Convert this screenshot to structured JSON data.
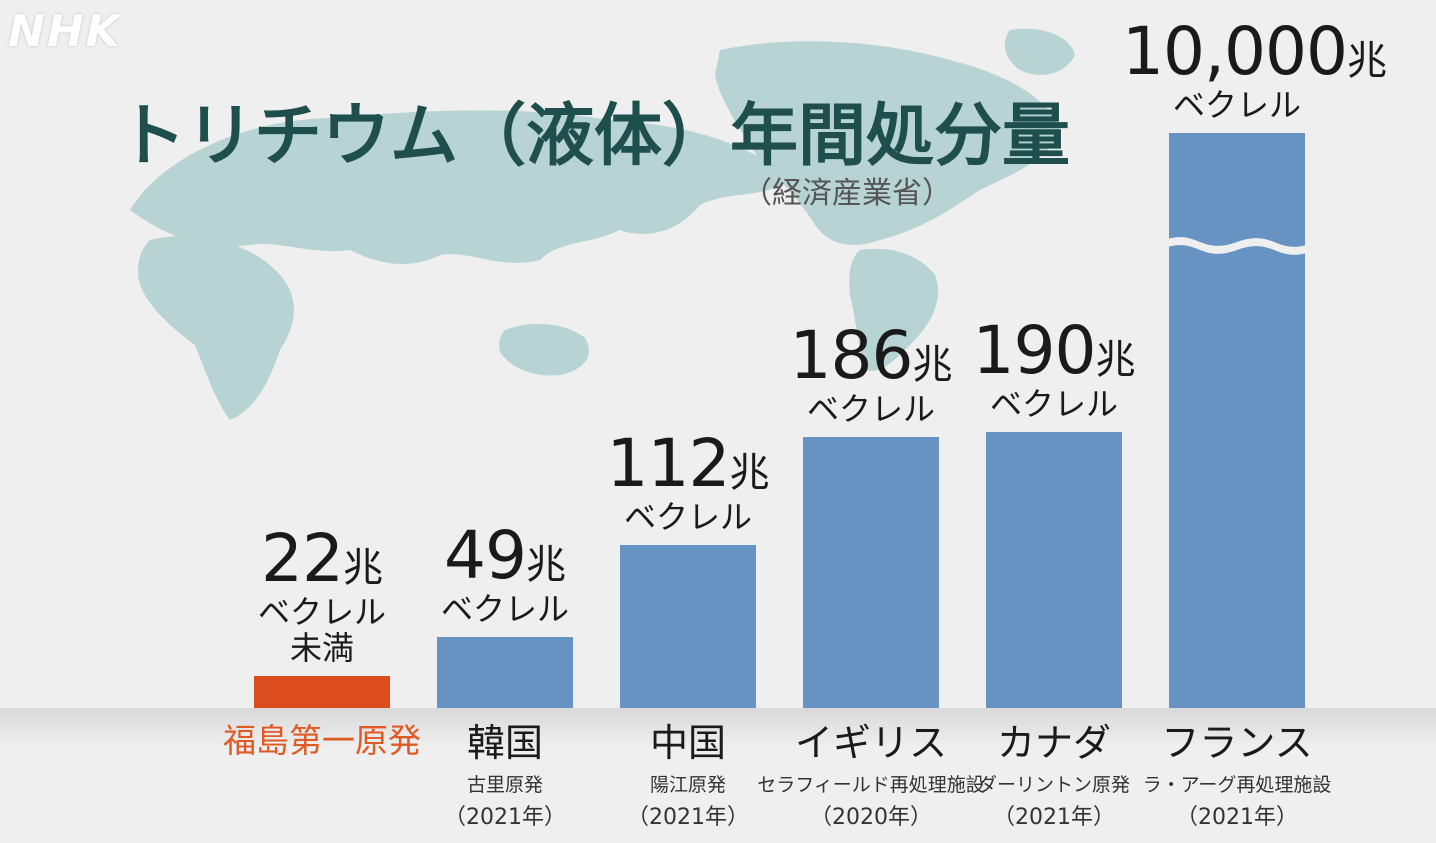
{
  "brand": {
    "logo": "NHK"
  },
  "title": "トリチウム（液体）年間処分量",
  "source": "（経済産業省）",
  "colors": {
    "highlight": "#db4d1e",
    "bar": "#6793c2",
    "title": "#1f4f4c",
    "map": "#b7d3d3"
  },
  "chart_data": {
    "type": "bar",
    "title": "トリチウム（液体）年間処分量",
    "unit": "兆ベクレル",
    "axis_break": true,
    "categories": [
      "福島第一原発",
      "韓国",
      "中国",
      "イギリス",
      "カナダ",
      "フランス"
    ],
    "values": [
      22,
      49,
      112,
      186,
      190,
      10000
    ],
    "items": [
      {
        "name": "福島第一原発",
        "value": 22,
        "num": "22",
        "unit": "兆",
        "bq": "ベクレル",
        "qual": "未満",
        "facility": "",
        "year": "",
        "highlight": true
      },
      {
        "name": "韓国",
        "value": 49,
        "num": "49",
        "unit": "兆",
        "bq": "ベクレル",
        "qual": "",
        "facility": "古里原発",
        "year": "（2021年）",
        "highlight": false
      },
      {
        "name": "中国",
        "value": 112,
        "num": "112",
        "unit": "兆",
        "bq": "ベクレル",
        "qual": "",
        "facility": "陽江原発",
        "year": "（2021年）",
        "highlight": false
      },
      {
        "name": "イギリス",
        "value": 186,
        "num": "186",
        "unit": "兆",
        "bq": "ベクレル",
        "qual": "",
        "facility": "セラフィールド再処理施設",
        "year": "（2020年）",
        "highlight": false
      },
      {
        "name": "カナダ",
        "value": 190,
        "num": "190",
        "unit": "兆",
        "bq": "ベクレル",
        "qual": "",
        "facility": "ダーリントン原発",
        "year": "（2021年）",
        "highlight": false
      },
      {
        "name": "フランス",
        "value": 10000,
        "num": "10,000",
        "unit": "兆",
        "bq": "ベクレル",
        "qual": "",
        "facility": "ラ・アーグ再処理施設",
        "year": "（2021年）",
        "highlight": false
      }
    ]
  }
}
